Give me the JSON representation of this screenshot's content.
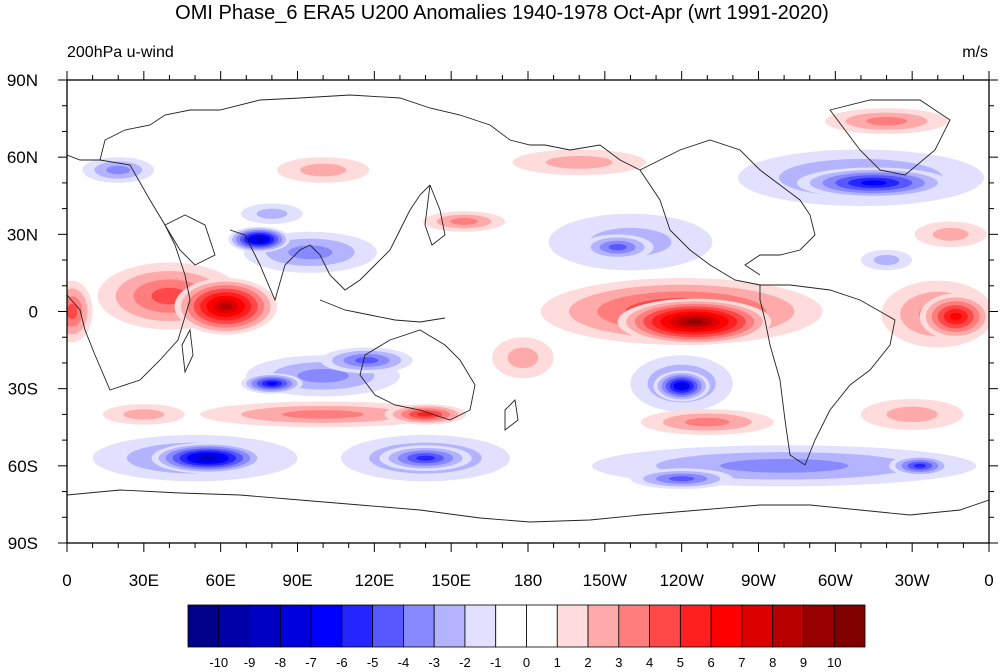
{
  "title": "OMI Phase_6 ERA5 U200 Anomalies 1940-1978 Oct-Apr (wrt 1991-2020)",
  "left_label": "200hPa u-wind",
  "units_label": "m/s",
  "lat_ticks": [
    {
      "label": "90N",
      "lat": 90
    },
    {
      "label": "60N",
      "lat": 60
    },
    {
      "label": "30N",
      "lat": 30
    },
    {
      "label": "0",
      "lat": 0
    },
    {
      "label": "30S",
      "lat": -30
    },
    {
      "label": "60S",
      "lat": -60
    },
    {
      "label": "90S",
      "lat": -90
    }
  ],
  "lon_ticks": [
    {
      "label": "0",
      "lon": 0
    },
    {
      "label": "30E",
      "lon": 30
    },
    {
      "label": "60E",
      "lon": 60
    },
    {
      "label": "90E",
      "lon": 90
    },
    {
      "label": "120E",
      "lon": 120
    },
    {
      "label": "150E",
      "lon": 150
    },
    {
      "label": "180",
      "lon": 180
    },
    {
      "label": "150W",
      "lon": 210
    },
    {
      "label": "120W",
      "lon": 240
    },
    {
      "label": "90W",
      "lon": 270
    },
    {
      "label": "60W",
      "lon": 300
    },
    {
      "label": "30W",
      "lon": 330
    },
    {
      "label": "0",
      "lon": 360
    }
  ],
  "colorbar": {
    "labels": [
      "-10",
      "-9",
      "-8",
      "-7",
      "-6",
      "-5",
      "-4",
      "-3",
      "-2",
      "-1",
      "0",
      "1",
      "2",
      "3",
      "4",
      "5",
      "6",
      "7",
      "8",
      "9",
      "10"
    ],
    "colors": [
      "#00008b",
      "#0000a8",
      "#0000c4",
      "#0000df",
      "#0000ff",
      "#2525ff",
      "#5858ff",
      "#8888ff",
      "#b3b3ff",
      "#e1e1ff",
      "#ffffff",
      "#ffffff",
      "#ffdcdc",
      "#ffaaaa",
      "#ff7d7d",
      "#ff4848",
      "#ff1f1f",
      "#ff0000",
      "#dc0000",
      "#b80000",
      "#960000",
      "#800000"
    ]
  },
  "anomalies": [
    {
      "lon": 62,
      "lat": 2,
      "rx": 20,
      "ry": 11,
      "v": 8
    },
    {
      "lon": 40,
      "lat": 6,
      "rx": 28,
      "ry": 13,
      "v": 4
    },
    {
      "lon": 2,
      "lat": 0,
      "rx": 8,
      "ry": 12,
      "v": 4
    },
    {
      "lon": 75,
      "lat": 28,
      "rx": 12,
      "ry": 5,
      "v": -8
    },
    {
      "lon": 95,
      "lat": 23,
      "rx": 26,
      "ry": 8,
      "v": -3
    },
    {
      "lon": 80,
      "lat": 38,
      "rx": 12,
      "ry": 4,
      "v": -2
    },
    {
      "lon": 245,
      "lat": -4,
      "rx": 30,
      "ry": 9,
      "v": 9
    },
    {
      "lon": 240,
      "lat": 0,
      "rx": 55,
      "ry": 13,
      "v": 5
    },
    {
      "lon": 347,
      "lat": -2,
      "rx": 14,
      "ry": 9,
      "v": 6
    },
    {
      "lon": 340,
      "lat": -1,
      "rx": 22,
      "ry": 13,
      "v": 3
    },
    {
      "lon": 240,
      "lat": -29,
      "rx": 11,
      "ry": 6,
      "v": -7
    },
    {
      "lon": 240,
      "lat": -28,
      "rx": 20,
      "ry": 11,
      "v": -3
    },
    {
      "lon": 100,
      "lat": -25,
      "rx": 30,
      "ry": 8,
      "v": -3
    },
    {
      "lon": 80,
      "lat": -28,
      "rx": 12,
      "ry": 4,
      "v": -6
    },
    {
      "lon": 117,
      "lat": -19,
      "rx": 18,
      "ry": 5,
      "v": -4
    },
    {
      "lon": 100,
      "lat": -40,
      "rx": 48,
      "ry": 5,
      "v": 3
    },
    {
      "lon": 140,
      "lat": -40,
      "rx": 16,
      "ry": 4,
      "v": 5
    },
    {
      "lon": 250,
      "lat": -43,
      "rx": 26,
      "ry": 5,
      "v": 3
    },
    {
      "lon": 55,
      "lat": -57,
      "rx": 22,
      "ry": 6,
      "v": -8
    },
    {
      "lon": 50,
      "lat": -57,
      "rx": 40,
      "ry": 9,
      "v": -3
    },
    {
      "lon": 140,
      "lat": -57,
      "rx": 18,
      "ry": 5,
      "v": -5
    },
    {
      "lon": 140,
      "lat": -57,
      "rx": 33,
      "ry": 9,
      "v": -3
    },
    {
      "lon": 280,
      "lat": -60,
      "rx": 75,
      "ry": 8,
      "v": -3
    },
    {
      "lon": 333,
      "lat": -60,
      "rx": 12,
      "ry": 4,
      "v": -5
    },
    {
      "lon": 240,
      "lat": -65,
      "rx": 20,
      "ry": 4,
      "v": -4
    },
    {
      "lon": 315,
      "lat": 50,
      "rx": 30,
      "ry": 6,
      "v": -6
    },
    {
      "lon": 310,
      "lat": 52,
      "rx": 48,
      "ry": 11,
      "v": -3
    },
    {
      "lon": 320,
      "lat": 74,
      "rx": 24,
      "ry": 5,
      "v": 3
    },
    {
      "lon": 215,
      "lat": 25,
      "rx": 14,
      "ry": 5,
      "v": -4
    },
    {
      "lon": 220,
      "lat": 27,
      "rx": 32,
      "ry": 11,
      "v": -2
    },
    {
      "lon": 155,
      "lat": 35,
      "rx": 16,
      "ry": 4,
      "v": 3
    },
    {
      "lon": 200,
      "lat": 58,
      "rx": 26,
      "ry": 5,
      "v": 2
    },
    {
      "lon": 178,
      "lat": -18,
      "rx": 12,
      "ry": 8,
      "v": 2
    },
    {
      "lon": 20,
      "lat": 55,
      "rx": 14,
      "ry": 5,
      "v": -3
    },
    {
      "lon": 100,
      "lat": 55,
      "rx": 18,
      "ry": 5,
      "v": 2
    },
    {
      "lon": 345,
      "lat": 30,
      "rx": 14,
      "ry": 5,
      "v": 2
    },
    {
      "lon": 320,
      "lat": 20,
      "rx": 10,
      "ry": 4,
      "v": -2
    },
    {
      "lon": 330,
      "lat": -40,
      "rx": 20,
      "ry": 6,
      "v": 2
    },
    {
      "lon": 30,
      "lat": -40,
      "rx": 16,
      "ry": 4,
      "v": 2
    }
  ]
}
